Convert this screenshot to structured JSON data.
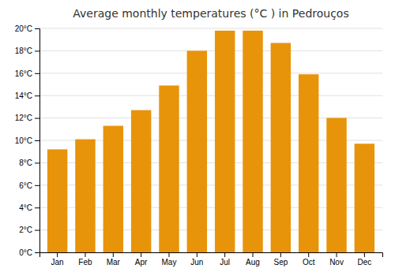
{
  "chart_data": {
    "type": "bar",
    "title": "Average monthly temperatures (°C ) in Pedrouços",
    "categories": [
      "Jan",
      "Feb",
      "Mar",
      "Apr",
      "May",
      "Jun",
      "Jul",
      "Aug",
      "Sep",
      "Oct",
      "Nov",
      "Dec"
    ],
    "values": [
      9.2,
      10.1,
      11.3,
      12.7,
      14.9,
      18.0,
      19.8,
      19.8,
      18.7,
      15.9,
      12.0,
      9.7
    ],
    "color": "#E8940A",
    "ylim": [
      0,
      20
    ],
    "yticks": [
      {
        "value": 0,
        "label": "0°C"
      },
      {
        "value": 2,
        "label": "2°C"
      },
      {
        "value": 4,
        "label": "4°C"
      },
      {
        "value": 6,
        "label": "6°C"
      },
      {
        "value": 8,
        "label": "8°C"
      },
      {
        "value": 10,
        "label": "10°C"
      },
      {
        "value": 12,
        "label": "12°C"
      },
      {
        "value": 14,
        "label": "14°C"
      },
      {
        "value": 16,
        "label": "16°C"
      },
      {
        "value": 18,
        "label": "18°C"
      },
      {
        "value": 20,
        "label": "20°C"
      }
    ],
    "grid": true
  }
}
